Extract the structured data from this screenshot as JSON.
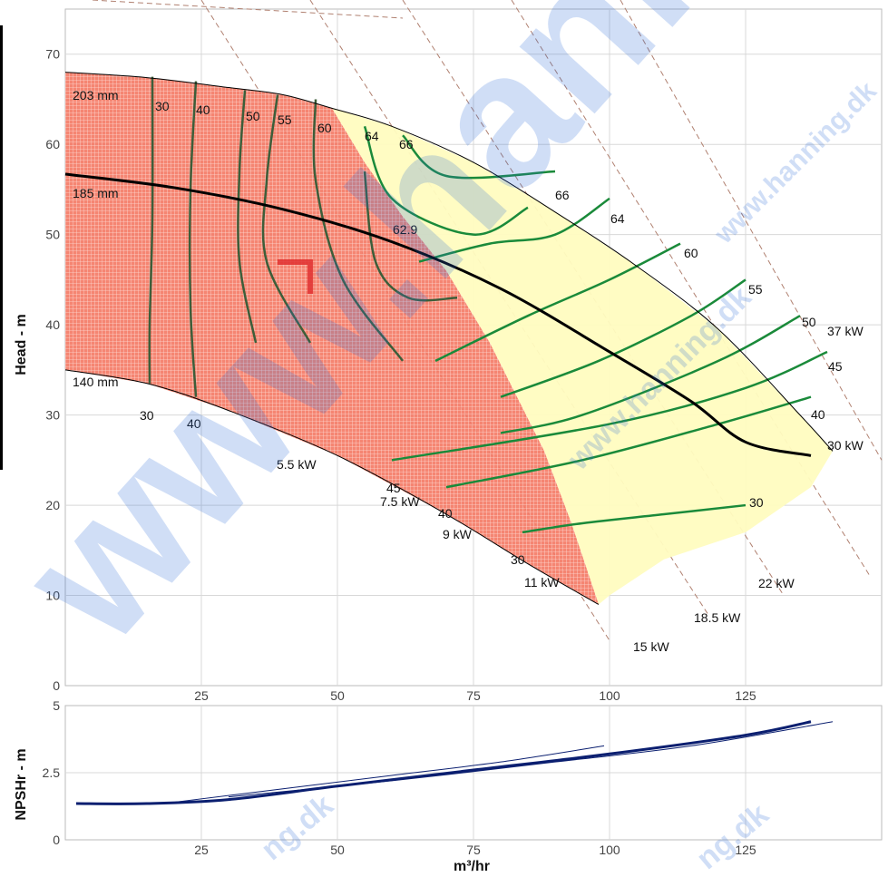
{
  "chart_data": [
    {
      "type": "line",
      "title": "",
      "ylabel": "Head - m",
      "xlabel": "",
      "xlim": [
        0,
        150
      ],
      "ylim": [
        0,
        75
      ],
      "x_ticks": [
        "25",
        "50",
        "75",
        "100",
        "125"
      ],
      "y_ticks": [
        "0",
        "10",
        "20",
        "30",
        "40",
        "50",
        "60",
        "70"
      ],
      "grid": true,
      "impeller_curves": [
        {
          "name": "203 mm",
          "points": [
            [
              0,
              68.0
            ],
            [
              15,
              67.4
            ],
            [
              30,
              66.3
            ],
            [
              40,
              65.5
            ],
            [
              49,
              64.0
            ],
            [
              60,
              62.0
            ],
            [
              75,
              58.0
            ],
            [
              90,
              52.5
            ],
            [
              105,
              46.5
            ],
            [
              120,
              39.5
            ],
            [
              135,
              30.0
            ],
            [
              141,
              26.0
            ]
          ]
        },
        {
          "name": "185 mm",
          "points": [
            [
              0,
              56.7
            ],
            [
              20,
              55.2
            ],
            [
              40,
              52.8
            ],
            [
              60,
              49.2
            ],
            [
              80,
              44.0
            ],
            [
              100,
              37.0
            ],
            [
              115,
              31.5
            ],
            [
              125,
              27.0
            ],
            [
              137,
              25.5
            ]
          ]
        },
        {
          "name": "140 mm",
          "points": [
            [
              0,
              35.0
            ],
            [
              15,
              33.5
            ],
            [
              30,
              30.5
            ],
            [
              50,
              25.5
            ],
            [
              70,
              19.0
            ],
            [
              85,
              13.5
            ],
            [
              98,
              9.0
            ]
          ]
        }
      ],
      "efficiency_contours": [
        {
          "label": "30",
          "points": [
            [
              16,
              67.5
            ],
            [
              16,
              52
            ],
            [
              15.5,
              40
            ],
            [
              15.5,
              33.5
            ]
          ]
        },
        {
          "label": "40",
          "points": [
            [
              24,
              67
            ],
            [
              23,
              55
            ],
            [
              23,
              42
            ],
            [
              24,
              32
            ]
          ]
        },
        {
          "label": "50",
          "points": [
            [
              33,
              66
            ],
            [
              32,
              57
            ],
            [
              32,
              47
            ],
            [
              35,
              38
            ]
          ]
        },
        {
          "label": "55",
          "points": [
            [
              39,
              65.5
            ],
            [
              37,
              56
            ],
            [
              37,
              47
            ],
            [
              45,
              38
            ]
          ]
        },
        {
          "label": "60",
          "points": [
            [
              46,
              65
            ],
            [
              46,
              56
            ],
            [
              51,
              45
            ],
            [
              62,
              36
            ]
          ]
        },
        {
          "label": "62.9",
          "points": [
            [
              55,
              57
            ],
            [
              57,
              47
            ],
            [
              63,
              43
            ],
            [
              72,
              43
            ]
          ]
        },
        {
          "label": "64",
          "points": [
            [
              55,
              62
            ],
            [
              60,
              54
            ],
            [
              75,
              50
            ],
            [
              85,
              53
            ]
          ]
        },
        {
          "label": "66",
          "points": [
            [
              62,
              61
            ],
            [
              70,
              56.5
            ],
            [
              90,
              57
            ]
          ]
        },
        {
          "label": "64",
          "points": [
            [
              100,
              54
            ],
            [
              90,
              50
            ],
            [
              78,
              49
            ],
            [
              65,
              47
            ]
          ]
        },
        {
          "label": "60",
          "points": [
            [
              113,
              49
            ],
            [
              100,
              45
            ],
            [
              85,
              41
            ],
            [
              68,
              36
            ]
          ]
        },
        {
          "label": "55",
          "points": [
            [
              125,
              45
            ],
            [
              115,
              41
            ],
            [
              98,
              36
            ],
            [
              80,
              32
            ]
          ]
        },
        {
          "label": "50",
          "points": [
            [
              135,
              41
            ],
            [
              120,
              36
            ],
            [
              95,
              30
            ],
            [
              80,
              28
            ]
          ]
        },
        {
          "label": "45",
          "points": [
            [
              140,
              37
            ],
            [
              125,
              33
            ],
            [
              100,
              29
            ],
            [
              60,
              25
            ]
          ]
        },
        {
          "label": "40",
          "points": [
            [
              137,
              32
            ],
            [
              120,
              29
            ],
            [
              95,
              25
            ],
            [
              70,
              22
            ]
          ]
        },
        {
          "label": "30",
          "points": [
            [
              125,
              20
            ],
            [
              110,
              19
            ],
            [
              95,
              18
            ],
            [
              84,
              17
            ]
          ]
        }
      ],
      "power_lines": [
        {
          "label": "5.5 kW"
        },
        {
          "label": "7.5 kW"
        },
        {
          "label": "9 kW"
        },
        {
          "label": "11 kW"
        },
        {
          "label": "15 kW"
        },
        {
          "label": "18.5 kW"
        },
        {
          "label": "22 kW"
        },
        {
          "label": "30 kW"
        },
        {
          "label": "37 kW"
        }
      ],
      "bottom_labels": [
        "30",
        "40",
        "45",
        "40",
        "30"
      ]
    },
    {
      "type": "line",
      "title": "",
      "ylabel": "NPSHr - m",
      "xlabel": "m³/hr",
      "xlim": [
        0,
        150
      ],
      "ylim": [
        0,
        5
      ],
      "x_ticks": [
        "25",
        "50",
        "75",
        "100",
        "125"
      ],
      "y_ticks": [
        "0",
        "2.5",
        "5"
      ],
      "grid": true,
      "series": [
        {
          "points": [
            [
              2,
              1.35
            ],
            [
              15,
              1.35
            ],
            [
              30,
              1.5
            ],
            [
              50,
              2.0
            ],
            [
              75,
              2.6
            ],
            [
              100,
              3.2
            ],
            [
              125,
              3.9
            ],
            [
              137,
              4.4
            ]
          ]
        },
        {
          "points": [
            [
              20,
              1.4
            ],
            [
              40,
              1.9
            ],
            [
              60,
              2.4
            ],
            [
              80,
              2.9
            ],
            [
              99,
              3.5
            ]
          ]
        },
        {
          "points": [
            [
              30,
              1.6
            ],
            [
              60,
              2.2
            ],
            [
              90,
              2.9
            ],
            [
              115,
              3.5
            ],
            [
              141,
              4.4
            ]
          ]
        }
      ]
    }
  ],
  "watermark": {
    "text_big": "www.hanning",
    "text_small": "www.hanning.dk",
    "text_dk": "ng.dk"
  },
  "colors": {
    "red_region": "#f06a55",
    "yellow_region": "#fffcc0",
    "efficiency_green": "#1a8a3a",
    "impeller_line": "#000000",
    "npsh_line": "#0b1f70",
    "power_dash": "#b08070",
    "marker": "#e03030"
  }
}
